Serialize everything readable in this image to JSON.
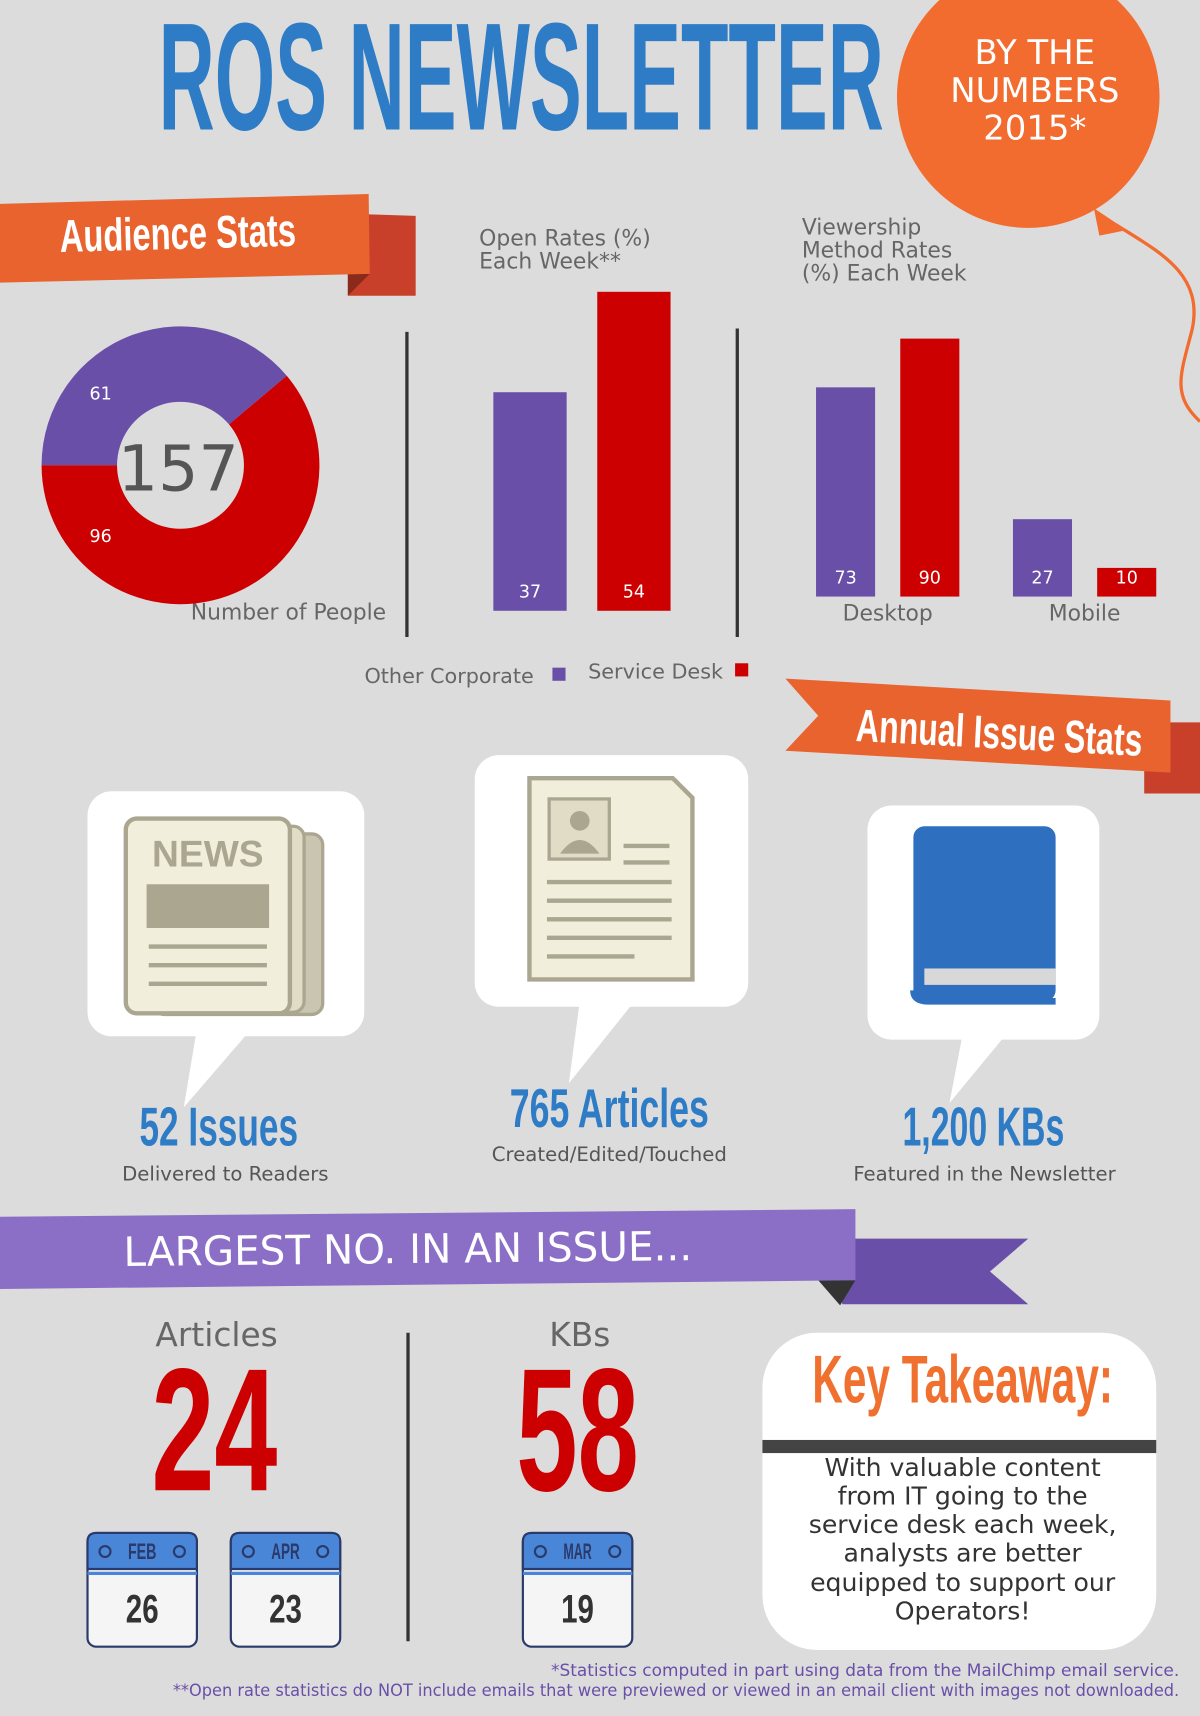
{
  "header": {
    "title": "ROS NEWSLETTER",
    "badge": [
      "BY THE",
      "NUMBERS",
      "2015*"
    ]
  },
  "sections": {
    "audience": "Audience Stats",
    "annual": "Annual Issue Stats",
    "largest": "LARGEST NO. IN AN ISSUE..."
  },
  "chart_data": [
    {
      "type": "pie",
      "donut": true,
      "title": "Number of People",
      "total": 157,
      "values": [
        61,
        96
      ],
      "colors": [
        "#6a4fa8",
        "#cc0000"
      ]
    },
    {
      "type": "bar",
      "title": [
        "Open Rates (%)",
        "Each Week**"
      ],
      "series": [
        {
          "color": "#6a4fa8",
          "values": [
            37
          ]
        },
        {
          "color": "#cc0000",
          "values": [
            54
          ]
        }
      ]
    },
    {
      "type": "bar",
      "title": [
        "Viewership",
        "Method Rates",
        "(%) Each Week"
      ],
      "categories": [
        "Desktop",
        "Mobile"
      ],
      "series": [
        {
          "name": "Other Corporate",
          "color": "#6a4fa8",
          "values": [
            73,
            27
          ]
        },
        {
          "name": "Service Desk",
          "color": "#cc0000",
          "values": [
            90,
            10
          ]
        }
      ]
    }
  ],
  "stats": [
    {
      "value": "52 Issues",
      "caption": "Delivered to Readers"
    },
    {
      "value": "765 Articles",
      "caption": "Created/Edited/Touched"
    },
    {
      "value": "1,200 KBs",
      "caption": "Featured in the Newsletter"
    }
  ],
  "largest": [
    {
      "label": "Articles",
      "value": "24",
      "dates": [
        {
          "month": "FEB",
          "day": "26"
        },
        {
          "month": "APR",
          "day": "23"
        }
      ]
    },
    {
      "label": "KBs",
      "value": "58",
      "dates": [
        {
          "month": "MAR",
          "day": "19"
        }
      ]
    }
  ],
  "takeaway": {
    "title": "Key Takeaway:",
    "lines": [
      "With valuable content",
      "from IT going to the",
      "service desk each week,",
      "analysts are better",
      "equipped to support our",
      "Operators!"
    ]
  },
  "footnotes": [
    "*Statistics computed in part using data from the MailChimp email service.",
    "**Open rate statistics do NOT include emails that were previewed or viewed in an email client with images not downloaded."
  ]
}
